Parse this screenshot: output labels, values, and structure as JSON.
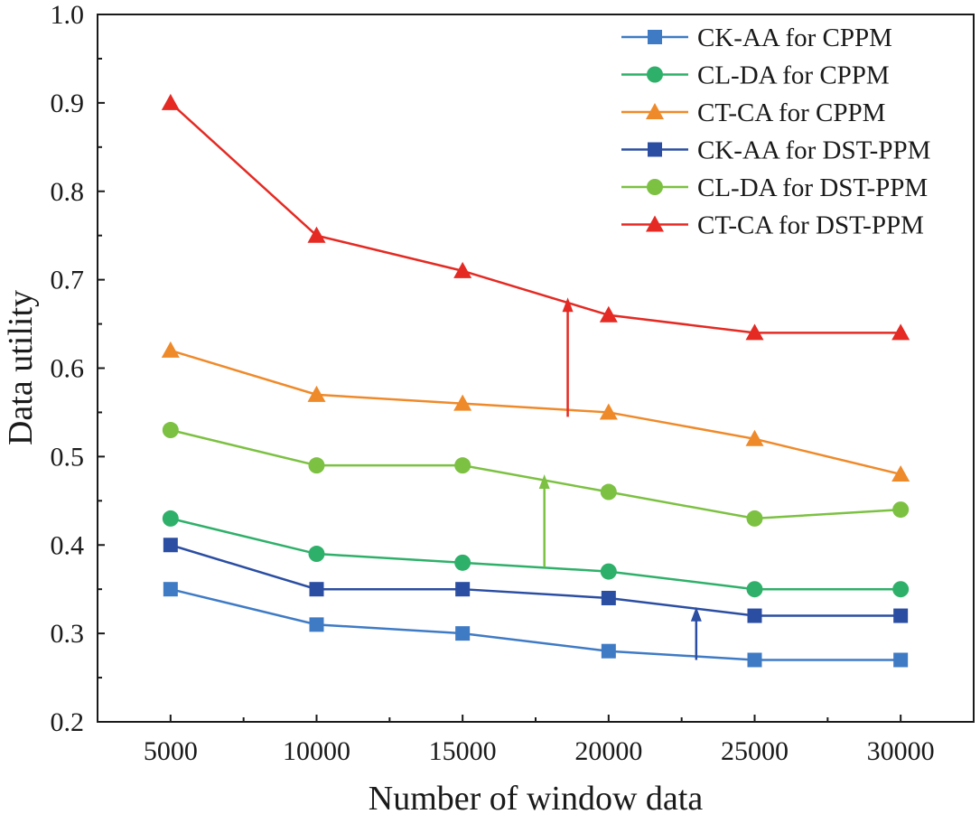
{
  "chart_data": {
    "type": "line",
    "title": "",
    "xlabel": "Number of window data",
    "ylabel": "Data utility",
    "x": [
      5000,
      10000,
      15000,
      20000,
      25000,
      30000
    ],
    "x_tick_labels": [
      "5000",
      "10000",
      "15000",
      "20000",
      "25000",
      "30000"
    ],
    "xlim": [
      2500,
      32500
    ],
    "ylim": [
      0.2,
      1.0
    ],
    "y_ticks": [
      0.2,
      0.3,
      0.4,
      0.5,
      0.6,
      0.7,
      0.8,
      0.9,
      1.0
    ],
    "y_tick_labels": [
      "0.2",
      "0.3",
      "0.4",
      "0.5",
      "0.6",
      "0.7",
      "0.8",
      "0.9",
      "1.0"
    ],
    "grid": false,
    "legend_position": "top-right",
    "series": [
      {
        "name": "CK-AA for CPPM",
        "marker": "square",
        "color": "#3f7bc5",
        "values": [
          0.35,
          0.31,
          0.3,
          0.28,
          0.27,
          0.27
        ]
      },
      {
        "name": "CL-DA for CPPM",
        "marker": "circle",
        "color": "#2fb06a",
        "values": [
          0.43,
          0.39,
          0.38,
          0.37,
          0.35,
          0.35
        ]
      },
      {
        "name": "CT-CA for CPPM",
        "marker": "triangle",
        "color": "#ef8a2a",
        "values": [
          0.62,
          0.57,
          0.56,
          0.55,
          0.52,
          0.48
        ]
      },
      {
        "name": "CK-AA for DST-PPM",
        "marker": "square",
        "color": "#2b4ea2",
        "values": [
          0.4,
          0.35,
          0.35,
          0.34,
          0.32,
          0.32
        ]
      },
      {
        "name": "CL-DA for DST-PPM",
        "marker": "circle",
        "color": "#7cc142",
        "values": [
          0.53,
          0.49,
          0.49,
          0.46,
          0.43,
          0.44
        ]
      },
      {
        "name": "CT-CA for DST-PPM",
        "marker": "triangle",
        "color": "#e42a23",
        "values": [
          0.9,
          0.75,
          0.71,
          0.66,
          0.64,
          0.64
        ]
      }
    ],
    "annotations": [
      {
        "type": "arrow",
        "color": "#2b4ea2",
        "x": 23000,
        "y_from": 0.27,
        "y_to": 0.33
      },
      {
        "type": "arrow",
        "color": "#7cc142",
        "x": 17800,
        "y_from": 0.375,
        "y_to": 0.48
      },
      {
        "type": "arrow",
        "color": "#e42a23",
        "x": 18600,
        "y_from": 0.545,
        "y_to": 0.68
      }
    ]
  }
}
